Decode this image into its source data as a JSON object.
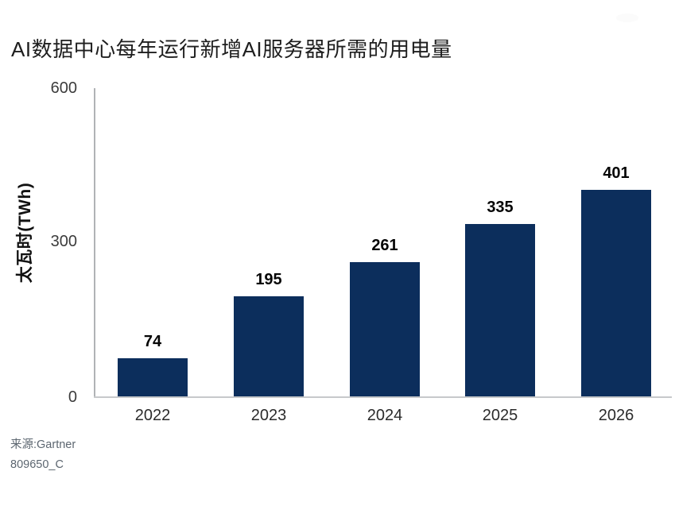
{
  "title": "AI数据中心每年运行新增AI服务器所需的用电量",
  "y_axis": {
    "label": "太瓦时(TWh)",
    "ticks": [
      "600",
      "300",
      "0"
    ]
  },
  "source": {
    "line1": "来源:Gartner",
    "line2": "809650_C"
  },
  "colors": {
    "bar": "#0c2e5c",
    "axis_line": "#b0b3b6",
    "baseline": "#c7c9cb"
  },
  "chart_data": {
    "type": "bar",
    "categories": [
      "2022",
      "2023",
      "2024",
      "2025",
      "2026"
    ],
    "values": [
      74,
      195,
      261,
      335,
      401
    ],
    "title": "AI数据中心每年运行新增AI服务器所需的用电量",
    "xlabel": "",
    "ylabel": "太瓦时(TWh)",
    "ylim": [
      0,
      600
    ],
    "yticks": [
      0,
      300,
      600
    ],
    "grid": false,
    "legend": false,
    "value_labels": true,
    "bar_color": "#0c2e5c",
    "source": "来源:Gartner 809650_C"
  }
}
